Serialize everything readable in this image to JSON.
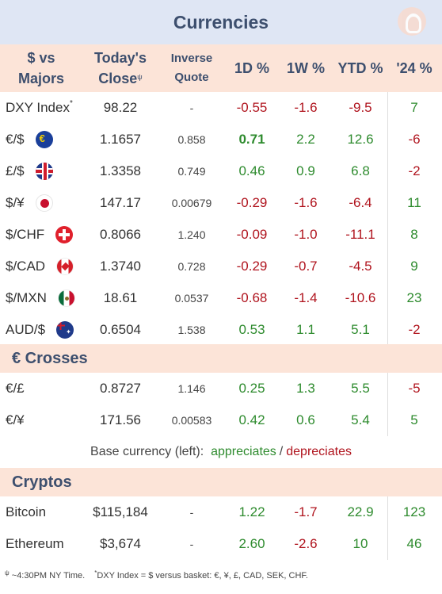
{
  "title": "Currencies",
  "header": {
    "col_name_line1": "$ vs",
    "col_name_line2": "Majors",
    "col_close_line1": "Today's",
    "col_close_line2": "Close",
    "col_close_marker": "ψ",
    "col_inverse_line1": "Inverse",
    "col_inverse_line2": "Quote",
    "col_1d": "1D %",
    "col_1w": "1W %",
    "col_ytd": "YTD %",
    "col_24": "'24 %"
  },
  "majors": [
    {
      "name": "DXY Index",
      "marker": "*",
      "flag": "",
      "close": "98.22",
      "inverse": "-",
      "d1": "-0.55",
      "w1": "-1.6",
      "ytd": "-9.5",
      "y24": "7"
    },
    {
      "name": "€/$",
      "marker": "",
      "flag": "eu-flag-icon",
      "close": "1.1657",
      "inverse": "0.858",
      "d1": "0.71",
      "w1": "2.2",
      "ytd": "12.6",
      "y24": "-6"
    },
    {
      "name": "£/$",
      "marker": "",
      "flag": "uk-flag-icon",
      "close": "1.3358",
      "inverse": "0.749",
      "d1": "0.46",
      "w1": "0.9",
      "ytd": "6.8",
      "y24": "-2"
    },
    {
      "name": "$/¥",
      "marker": "",
      "flag": "japan-flag-icon",
      "close": "147.17",
      "inverse": "0.00679",
      "d1": "-0.29",
      "w1": "-1.6",
      "ytd": "-6.4",
      "y24": "11"
    },
    {
      "name": "$/CHF",
      "marker": "",
      "flag": "swiss-flag-icon",
      "close": "0.8066",
      "inverse": "1.240",
      "d1": "-0.09",
      "w1": "-1.0",
      "ytd": "-11.1",
      "y24": "8"
    },
    {
      "name": "$/CAD",
      "marker": "",
      "flag": "canada-flag-icon",
      "close": "1.3740",
      "inverse": "0.728",
      "d1": "-0.29",
      "w1": "-0.7",
      "ytd": "-4.5",
      "y24": "9"
    },
    {
      "name": "$/MXN",
      "marker": "",
      "flag": "mexico-flag-icon",
      "close": "18.61",
      "inverse": "0.0537",
      "d1": "-0.68",
      "w1": "-1.4",
      "ytd": "-10.6",
      "y24": "23"
    },
    {
      "name": "AUD/$",
      "marker": "",
      "flag": "australia-flag-icon",
      "close": "0.6504",
      "inverse": "1.538",
      "d1": "0.53",
      "w1": "1.1",
      "ytd": "5.1",
      "y24": "-2"
    }
  ],
  "euro_section_title": "€ Crosses",
  "euro_crosses": [
    {
      "name": "€/£",
      "close": "0.8727",
      "inverse": "1.146",
      "d1": "0.25",
      "w1": "1.3",
      "ytd": "5.5",
      "y24": "-5"
    },
    {
      "name": "€/¥",
      "close": "171.56",
      "inverse": "0.00583",
      "d1": "0.42",
      "w1": "0.6",
      "ytd": "5.4",
      "y24": "5"
    }
  ],
  "legend": {
    "prefix": "Base currency (left):",
    "appreciates": "appreciates",
    "separator": "/",
    "depreciates": "depreciates"
  },
  "crypto_section_title": "Cryptos",
  "cryptos": [
    {
      "name": "Bitcoin",
      "close": "$115,184",
      "inverse": "-",
      "d1": "1.22",
      "w1": "-1.7",
      "ytd": "22.9",
      "y24": "123"
    },
    {
      "name": "Ethereum",
      "close": "$3,674",
      "inverse": "-",
      "d1": "2.60",
      "w1": "-2.6",
      "ytd": "10",
      "y24": "46"
    }
  ],
  "footnote": {
    "marker1": "ψ",
    "text1": "~4:30PM NY Time.",
    "marker2": "*",
    "text2": "DXY Index = $ versus basket: €, ¥, £, CAD, SEK, CHF."
  },
  "colors": {
    "positive": "#2e8b2e",
    "negative": "#b0141e",
    "header_bg": "#fce4d8",
    "title_bg": "#dfe6f4"
  }
}
